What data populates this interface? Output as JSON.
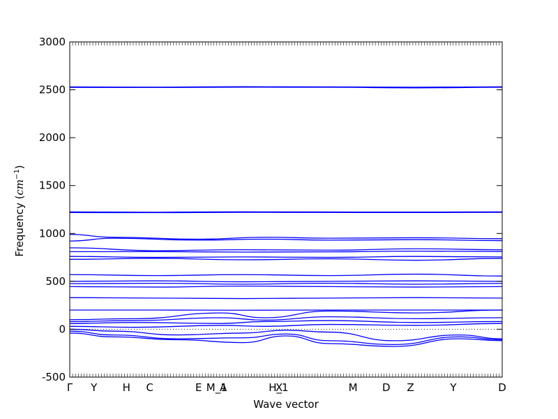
{
  "chart_data": {
    "type": "line",
    "title": "",
    "xlabel": "Wave vector",
    "ylabel": "Frequency (cm⁻¹)",
    "ylabel_base": "Frequency (",
    "ylabel_unit": "cm",
    "ylabel_exp": "−1",
    "ylabel_close": ")",
    "ylim": [
      -500,
      3000
    ],
    "yticks": [
      -500,
      0,
      500,
      1000,
      1500,
      2000,
      2500,
      3000
    ],
    "xlim": [
      0,
      1
    ],
    "xticks": [
      {
        "pos": 0.0,
        "label": "Γ"
      },
      {
        "pos": 0.056,
        "label": "Y"
      },
      {
        "pos": 0.131,
        "label": "H"
      },
      {
        "pos": 0.185,
        "label": "C"
      },
      {
        "pos": 0.298,
        "label": "E"
      },
      {
        "pos": 0.34,
        "label": "M_1"
      },
      {
        "pos": 0.355,
        "label": "A"
      },
      {
        "pos": 0.483,
        "label": "H_1"
      },
      {
        "pos": 0.484,
        "label": "X"
      },
      {
        "pos": 0.655,
        "label": "M"
      },
      {
        "pos": 0.732,
        "label": "D"
      },
      {
        "pos": 0.788,
        "label": "Z"
      },
      {
        "pos": 0.887,
        "label": "Y"
      },
      {
        "pos": 1.0,
        "label": "D"
      }
    ],
    "grid": false,
    "color": "#0000ff",
    "series": [
      {
        "x": [
          0,
          0.2,
          0.4,
          0.6,
          0.8,
          1.0
        ],
        "y": [
          2530,
          2528,
          2532,
          2530,
          2527,
          2531
        ]
      },
      {
        "x": [
          0,
          0.2,
          0.4,
          0.6,
          0.8,
          1.0
        ],
        "y": [
          2525,
          2524,
          2527,
          2526,
          2520,
          2526
        ]
      },
      {
        "x": [
          0,
          0.2,
          0.4,
          0.6,
          0.8,
          1.0
        ],
        "y": [
          1225,
          1222,
          1226,
          1224,
          1223,
          1225
        ]
      },
      {
        "x": [
          0,
          0.2,
          0.4,
          0.6,
          0.8,
          1.0
        ],
        "y": [
          1218,
          1217,
          1220,
          1219,
          1218,
          1220
        ]
      },
      {
        "x": [
          0,
          0.1,
          0.3,
          0.45,
          0.6,
          0.8,
          1.0
        ],
        "y": [
          990,
          960,
          940,
          960,
          950,
          955,
          945
        ]
      },
      {
        "x": [
          0,
          0.1,
          0.3,
          0.45,
          0.6,
          0.8,
          1.0
        ],
        "y": [
          920,
          950,
          930,
          940,
          930,
          935,
          925
        ]
      },
      {
        "x": [
          0,
          0.2,
          0.4,
          0.6,
          0.8,
          1.0
        ],
        "y": [
          850,
          820,
          830,
          825,
          840,
          830
        ]
      },
      {
        "x": [
          0,
          0.2,
          0.4,
          0.6,
          0.8,
          1.0
        ],
        "y": [
          810,
          810,
          805,
          808,
          815,
          812
        ]
      },
      {
        "x": [
          0,
          0.2,
          0.4,
          0.6,
          0.8,
          1.0
        ],
        "y": [
          760,
          750,
          755,
          750,
          760,
          755
        ]
      },
      {
        "x": [
          0,
          0.2,
          0.4,
          0.6,
          0.8,
          1.0
        ],
        "y": [
          730,
          740,
          725,
          735,
          720,
          740
        ]
      },
      {
        "x": [
          0,
          0.2,
          0.4,
          0.6,
          0.8,
          1.0
        ],
        "y": [
          570,
          560,
          570,
          560,
          575,
          555
        ]
      },
      {
        "x": [
          0,
          0.2,
          0.4,
          0.6,
          0.8,
          1.0
        ],
        "y": [
          500,
          505,
          495,
          500,
          505,
          500
        ]
      },
      {
        "x": [
          0,
          0.2,
          0.4,
          0.6,
          0.8,
          1.0
        ],
        "y": [
          475,
          480,
          470,
          480,
          470,
          478
        ]
      },
      {
        "x": [
          0,
          0.2,
          0.4,
          0.6,
          0.8,
          1.0
        ],
        "y": [
          445,
          440,
          450,
          445,
          440,
          445
        ]
      },
      {
        "x": [
          0,
          0.2,
          0.4,
          0.6,
          0.8,
          1.0
        ],
        "y": [
          330,
          325,
          320,
          325,
          330,
          325
        ]
      },
      {
        "x": [
          0,
          0.2,
          0.4,
          0.6,
          0.8,
          1.0
        ],
        "y": [
          200,
          200,
          198,
          200,
          200,
          200
        ]
      },
      {
        "x": [
          0,
          0.15,
          0.35,
          0.45,
          0.6,
          0.8,
          1.0
        ],
        "y": [
          100,
          110,
          170,
          120,
          190,
          170,
          200
        ]
      },
      {
        "x": [
          0,
          0.15,
          0.35,
          0.45,
          0.6,
          0.8,
          1.0
        ],
        "y": [
          80,
          90,
          120,
          95,
          130,
          110,
          120
        ]
      },
      {
        "x": [
          0,
          0.15,
          0.35,
          0.45,
          0.6,
          0.8,
          1.0
        ],
        "y": [
          60,
          70,
          60,
          80,
          90,
          70,
          80
        ]
      },
      {
        "x": [
          0,
          0.15,
          0.35,
          0.45,
          0.6,
          0.8,
          1.0
        ],
        "y": [
          30,
          20,
          40,
          30,
          50,
          40,
          60
        ]
      },
      {
        "x": [
          0,
          0.1,
          0.25,
          0.4,
          0.5,
          0.6,
          0.75,
          0.9,
          1.0
        ],
        "y": [
          0,
          -20,
          -60,
          -40,
          -10,
          -30,
          -120,
          -60,
          -100
        ]
      },
      {
        "x": [
          0,
          0.1,
          0.25,
          0.4,
          0.5,
          0.6,
          0.75,
          0.9,
          1.0
        ],
        "y": [
          -20,
          -60,
          -100,
          -90,
          -50,
          -120,
          -160,
          -80,
          -110
        ]
      },
      {
        "x": [
          0,
          0.1,
          0.25,
          0.4,
          0.5,
          0.6,
          0.75,
          0.9,
          1.0
        ],
        "y": [
          -40,
          -80,
          -110,
          -140,
          -70,
          -150,
          -180,
          -100,
          -120
        ]
      }
    ]
  }
}
